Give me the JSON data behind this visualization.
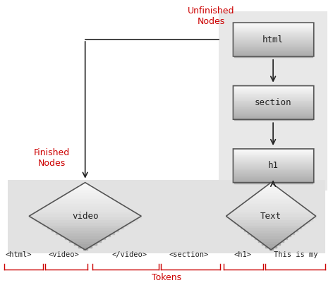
{
  "fig_width": 4.72,
  "fig_height": 4.11,
  "dpi": 100,
  "bg_color": "#ffffff",
  "unfinished_bg": "#e8e8e8",
  "finished_bg": "#e2e2e2",
  "box_top_color": "#f0f0f0",
  "box_bot_color": "#b0b0b0",
  "box_edge": "#555555",
  "arrow_color": "#222222",
  "label_red": "#cc0000",
  "token_red": "#cc0000",
  "monospace_font": "monospace",
  "nodes_unfinished": [
    "html",
    "section",
    "h1"
  ],
  "token_labels": [
    "<html>",
    "<video>",
    "</video><section>",
    "<h1>",
    "This is my"
  ],
  "token_labels_display": [
    "<html>",
    "<video>",
    "</video>",
    "<section>",
    "<h1>",
    "This is my"
  ]
}
